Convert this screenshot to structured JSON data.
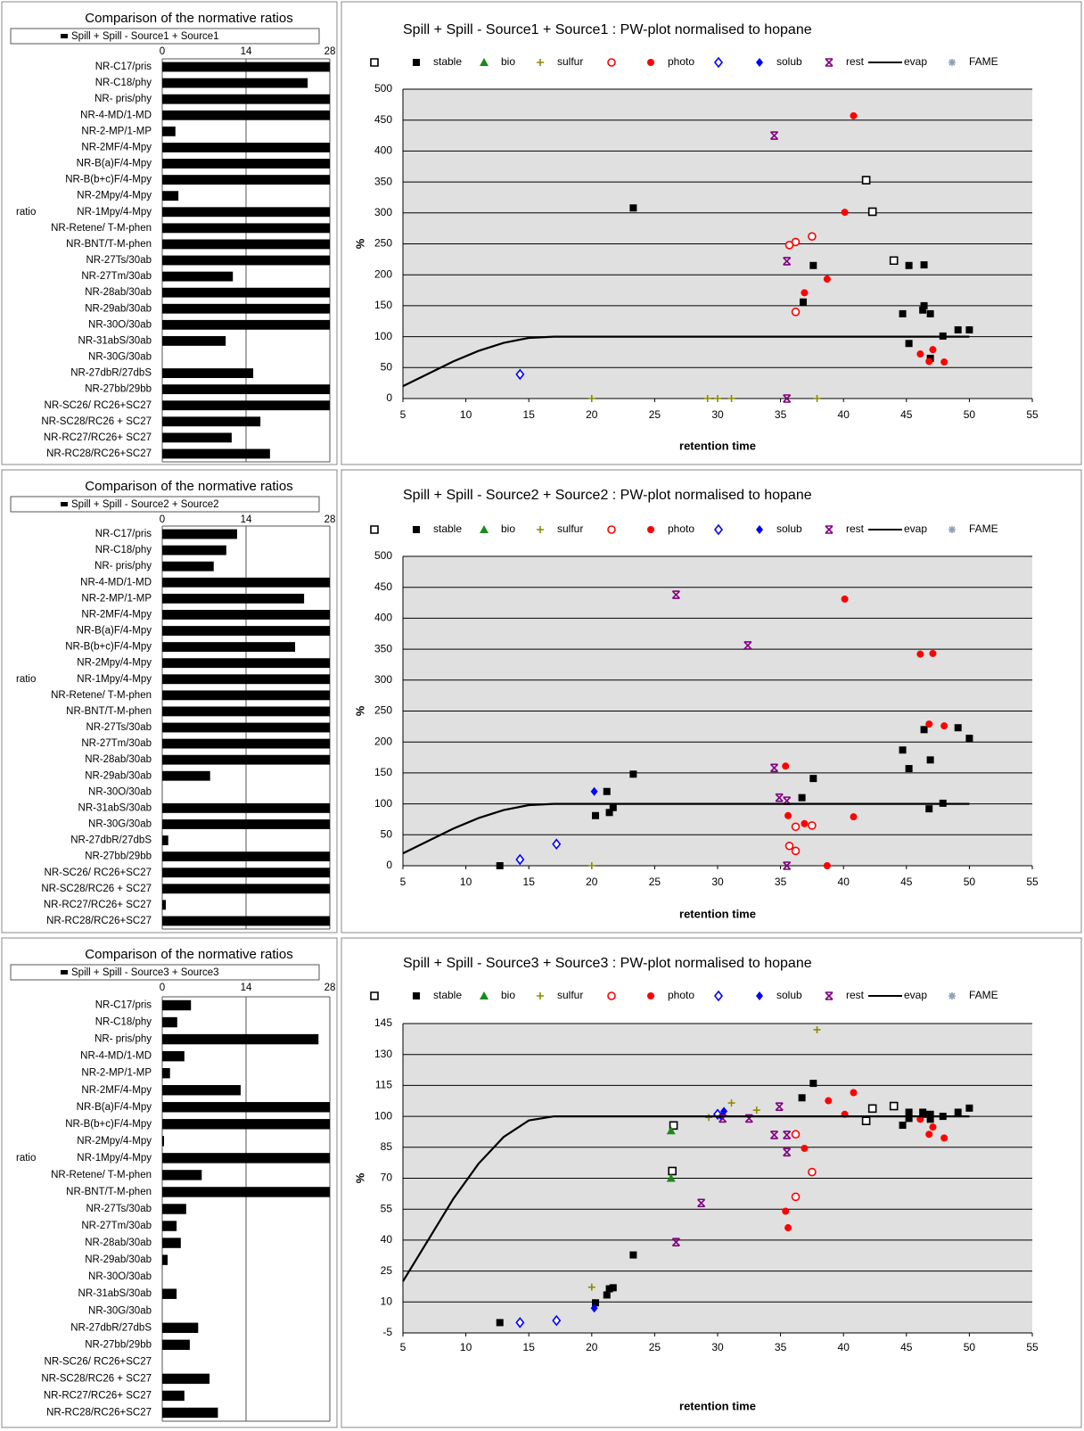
{
  "chart_data": [
    {
      "type": "hbar",
      "title": "Comparison of the normative ratios",
      "y_label": "ratio",
      "categories": [
        "NR-C17/pris",
        "NR-C18/phy",
        "NR- pris/phy",
        "NR-4-MD/1-MD",
        "NR-2-MP/1-MP",
        "NR-2MF/4-Mpy",
        "NR-B(a)F/4-Mpy",
        "NR-B(b+c)F/4-Mpy",
        "NR-2Mpy/4-Mpy",
        "NR-1Mpy/4-Mpy",
        "NR-Retene/ T-M-phen",
        "NR-BNT/T-M-phen",
        "NR-27Ts/30ab",
        "NR-27Tm/30ab",
        "NR-28ab/30ab",
        "NR-29ab/30ab",
        "NR-30O/30ab",
        "NR-31abS/30ab",
        "NR-30G/30ab",
        "NR-27dbR/27dbS",
        "NR-27bb/29bb",
        "NR-SC26/ RC26+SC27",
        "NR-SC28/RC26 + SC27",
        "NR-RC27/RC26+ SC27",
        "NR-RC28/RC26+SC27"
      ],
      "series": [
        {
          "name": "Spill + Spill  -  Source1 + Source1",
          "color": "#000000",
          "values": [
            28,
            24.3,
            28,
            28,
            2.2,
            28,
            28,
            28,
            2.7,
            28,
            28,
            28,
            28,
            11.8,
            28,
            28,
            28,
            10.6,
            0,
            15.2,
            28,
            28,
            16.4,
            11.6,
            18
          ]
        }
      ],
      "xlim": [
        0,
        28
      ],
      "xticks": [
        0,
        14,
        28
      ],
      "grid": true
    },
    {
      "type": "scatter",
      "title": "Spill + Spill  -  Source1 + Source1 :  PW-plot normalised to hopane",
      "x_label": "retention time",
      "y_label": "%",
      "xlim": [
        5,
        55
      ],
      "xticks": [
        5,
        10,
        15,
        20,
        25,
        30,
        35,
        40,
        45,
        50,
        55
      ],
      "ylim": [
        0,
        500
      ],
      "yticks": [
        0,
        50,
        100,
        150,
        200,
        250,
        300,
        350,
        400,
        450,
        500
      ],
      "grid": true,
      "background": "#e0e0e0",
      "series": [
        {
          "name": null,
          "color": "#000000",
          "marker": "square-open",
          "x": [
            41.8,
            42.3,
            44
          ],
          "values": [
            353,
            302,
            223
          ]
        },
        {
          "name": "stable",
          "color": "#000000",
          "marker": "square",
          "x": [
            23.3,
            37.6,
            36.8,
            44.7,
            45.2,
            46.4,
            46.4,
            46.3,
            46.9,
            47.9,
            45.2,
            46.9,
            49.1,
            50
          ],
          "values": [
            308,
            215,
            156,
            137,
            215,
            216,
            150,
            143,
            137,
            101,
            89,
            65,
            111,
            111
          ]
        },
        {
          "name": "bio",
          "color": "#1a8a1a",
          "marker": "triangle",
          "x": [],
          "values": []
        },
        {
          "name": "sulfur",
          "color": "#8b8b00",
          "marker": "plus",
          "x": [
            20,
            29.2,
            30,
            31.1,
            37.9
          ],
          "values": [
            0,
            0,
            0,
            0,
            0
          ]
        },
        {
          "name": null,
          "color": "#ff0000",
          "marker": "circle-open",
          "x": [
            35.7,
            36.2,
            37.5,
            36.2
          ],
          "values": [
            248,
            253,
            262,
            140
          ]
        },
        {
          "name": "photo",
          "color": "#ff0000",
          "marker": "circle",
          "x": [
            40.8,
            40.1,
            36.9,
            38.7,
            46.1,
            47.1,
            46.8,
            48
          ],
          "values": [
            457,
            301,
            171,
            193,
            72,
            79,
            60,
            59
          ]
        },
        {
          "name": null,
          "color": "#0000ff",
          "marker": "diamond-open",
          "x": [
            14.3
          ],
          "values": [
            39
          ]
        },
        {
          "name": "solub",
          "color": "#0000ff",
          "marker": "diamond",
          "x": [],
          "values": []
        },
        {
          "name": "rest",
          "color": "#800080",
          "marker": "x",
          "x": [
            34.5,
            35.5,
            35.5
          ],
          "values": [
            425,
            222,
            0
          ]
        },
        {
          "name": "evap",
          "color": "#000000",
          "marker": "line",
          "x": [
            5,
            7,
            9,
            11,
            13,
            15,
            17,
            50
          ],
          "values": [
            20,
            40,
            60,
            77,
            90,
            98,
            100,
            100
          ]
        },
        {
          "name": "FAME",
          "color": "#8fa0b8",
          "marker": "star",
          "x": [],
          "values": []
        }
      ]
    },
    {
      "type": "hbar",
      "title": "Comparison of the normative ratios",
      "y_label": "ratio",
      "categories": [
        "NR-C17/pris",
        "NR-C18/phy",
        "NR- pris/phy",
        "NR-4-MD/1-MD",
        "NR-2-MP/1-MP",
        "NR-2MF/4-Mpy",
        "NR-B(a)F/4-Mpy",
        "NR-B(b+c)F/4-Mpy",
        "NR-2Mpy/4-Mpy",
        "NR-1Mpy/4-Mpy",
        "NR-Retene/ T-M-phen",
        "NR-BNT/T-M-phen",
        "NR-27Ts/30ab",
        "NR-27Tm/30ab",
        "NR-28ab/30ab",
        "NR-29ab/30ab",
        "NR-30O/30ab",
        "NR-31abS/30ab",
        "NR-30G/30ab",
        "NR-27dbR/27dbS",
        "NR-27bb/29bb",
        "NR-SC26/ RC26+SC27",
        "NR-SC28/RC26 + SC27",
        "NR-RC27/RC26+ SC27",
        "NR-RC28/RC26+SC27"
      ],
      "series": [
        {
          "name": "Spill + Spill  -  Source2 + Source2",
          "color": "#000000",
          "values": [
            12.5,
            10.7,
            8.6,
            28,
            23.7,
            28,
            28,
            22.2,
            28,
            28,
            28,
            28,
            28,
            28,
            28,
            8,
            0,
            28,
            28,
            1,
            28,
            28,
            28,
            0.6,
            28
          ]
        }
      ],
      "xlim": [
        0,
        28
      ],
      "xticks": [
        0,
        14,
        28
      ],
      "grid": true
    },
    {
      "type": "scatter",
      "title": "Spill + Spill  -  Source2 + Source2 :  PW-plot normalised to hopane",
      "x_label": "retention time",
      "y_label": "%",
      "xlim": [
        5,
        55
      ],
      "xticks": [
        5,
        10,
        15,
        20,
        25,
        30,
        35,
        40,
        45,
        50,
        55
      ],
      "ylim": [
        0,
        500
      ],
      "yticks": [
        0,
        50,
        100,
        150,
        200,
        250,
        300,
        350,
        400,
        450,
        500
      ],
      "grid": true,
      "background": "#e0e0e0",
      "series": [
        {
          "name": null,
          "color": "#000000",
          "marker": "square-open",
          "x": [],
          "values": []
        },
        {
          "name": "stable",
          "color": "#000000",
          "marker": "square",
          "x": [
            12.7,
            20.3,
            21.2,
            21.4,
            21.7,
            23.3,
            36.7,
            37.6,
            44.7,
            45.2,
            46.4,
            46.9,
            49.1,
            50,
            46.8,
            47.9
          ],
          "values": [
            0,
            81,
            120,
            86,
            94,
            148,
            110,
            141,
            187,
            157,
            220,
            171,
            223,
            206,
            92,
            101
          ]
        },
        {
          "name": "bio",
          "color": "#1a8a1a",
          "marker": "triangle",
          "x": [],
          "values": []
        },
        {
          "name": "sulfur",
          "color": "#8b8b00",
          "marker": "plus",
          "x": [
            20
          ],
          "values": [
            0
          ]
        },
        {
          "name": null,
          "color": "#ff0000",
          "marker": "circle-open",
          "x": [
            36.2,
            37.5,
            35.7,
            36.2
          ],
          "values": [
            63,
            65,
            32,
            24
          ]
        },
        {
          "name": "photo",
          "color": "#ff0000",
          "marker": "circle",
          "x": [
            40.1,
            46.1,
            47.1,
            46.8,
            48,
            35.4,
            35.6,
            36.9,
            40.8,
            38.7
          ],
          "values": [
            431,
            342,
            343,
            229,
            226,
            161,
            81,
            68,
            79,
            0
          ]
        },
        {
          "name": null,
          "color": "#0000ff",
          "marker": "diamond-open",
          "x": [
            14.3,
            17.2
          ],
          "values": [
            10,
            35
          ]
        },
        {
          "name": "solub",
          "color": "#0000ff",
          "marker": "diamond",
          "x": [
            20.2
          ],
          "values": [
            120
          ]
        },
        {
          "name": "rest",
          "color": "#800080",
          "marker": "x",
          "x": [
            26.7,
            32.4,
            34.5,
            34.9,
            35.5,
            35.5
          ],
          "values": [
            438,
            356,
            158,
            110,
            105,
            0
          ]
        },
        {
          "name": "evap",
          "color": "#000000",
          "marker": "line",
          "x": [
            5,
            7,
            9,
            11,
            13,
            15,
            17,
            50
          ],
          "values": [
            20,
            40,
            60,
            77,
            90,
            98,
            100,
            100
          ]
        },
        {
          "name": "FAME",
          "color": "#8fa0b8",
          "marker": "star",
          "x": [],
          "values": []
        }
      ]
    },
    {
      "type": "hbar",
      "title": "Comparison of the normative ratios",
      "y_label": "ratio",
      "categories": [
        "NR-C17/pris",
        "NR-C18/phy",
        "NR- pris/phy",
        "NR-4-MD/1-MD",
        "NR-2-MP/1-MP",
        "NR-2MF/4-Mpy",
        "NR-B(a)F/4-Mpy",
        "NR-B(b+c)F/4-Mpy",
        "NR-2Mpy/4-Mpy",
        "NR-1Mpy/4-Mpy",
        "NR-Retene/ T-M-phen",
        "NR-BNT/T-M-phen",
        "NR-27Ts/30ab",
        "NR-27Tm/30ab",
        "NR-28ab/30ab",
        "NR-29ab/30ab",
        "NR-30O/30ab",
        "NR-31abS/30ab",
        "NR-30G/30ab",
        "NR-27dbR/27dbS",
        "NR-27bb/29bb",
        "NR-SC26/ RC26+SC27",
        "NR-SC28/RC26 + SC27",
        "NR-RC27/RC26+ SC27",
        "NR-RC28/RC26+SC27"
      ],
      "series": [
        {
          "name": "Spill + Spill  -  Source3 + Source3",
          "color": "#000000",
          "values": [
            4.8,
            2.5,
            26.1,
            3.7,
            1.3,
            13.1,
            28,
            28,
            0.3,
            28,
            6.6,
            28,
            4,
            2.4,
            3.1,
            0.9,
            0,
            2.4,
            0,
            6,
            4.6,
            0,
            7.9,
            3.7,
            9.3
          ]
        }
      ],
      "xlim": [
        0,
        28
      ],
      "xticks": [
        0,
        14,
        28
      ],
      "grid": true
    },
    {
      "type": "scatter",
      "title": "Spill + Spill  -  Source3 + Source3 :  PW-plot normalised to hopane",
      "x_label": "retention time",
      "y_label": "%",
      "xlim": [
        5,
        55
      ],
      "xticks": [
        5,
        10,
        15,
        20,
        25,
        30,
        35,
        40,
        45,
        50,
        55
      ],
      "ylim": [
        -5,
        145
      ],
      "yticks": [
        -5,
        10,
        25,
        40,
        55,
        70,
        85,
        100,
        115,
        130,
        145
      ],
      "grid": true,
      "background": "#e0e0e0",
      "series": [
        {
          "name": null,
          "color": "#000000",
          "marker": "square-open",
          "x": [
            26.5,
            26.4,
            41.8,
            42.3,
            44
          ],
          "values": [
            95.6,
            73.5,
            97.8,
            103.8,
            105
          ]
        },
        {
          "name": "stable",
          "color": "#000000",
          "marker": "square",
          "x": [
            12.7,
            20.3,
            21.2,
            21.4,
            21.7,
            23.3,
            36.7,
            37.6,
            44.7,
            45.2,
            45.2,
            46.4,
            46.3,
            46.9,
            46.9,
            47.9,
            49.1,
            50
          ],
          "values": [
            0,
            9.6,
            13.4,
            16.4,
            16.9,
            32.8,
            109,
            116,
            95.7,
            102,
            99,
            101,
            102,
            101,
            98.6,
            100,
            102,
            104
          ]
        },
        {
          "name": "bio",
          "color": "#1a8a1a",
          "marker": "triangle",
          "x": [
            26.3,
            26.3
          ],
          "values": [
            93,
            70
          ]
        },
        {
          "name": "sulfur",
          "color": "#8b8b00",
          "marker": "plus",
          "x": [
            20,
            29.3,
            31.1,
            33.1,
            37.9
          ],
          "values": [
            17.2,
            99.5,
            106.5,
            103,
            142
          ]
        },
        {
          "name": null,
          "color": "#ff0000",
          "marker": "circle-open",
          "x": [
            36.2,
            37.5,
            36.2
          ],
          "values": [
            91.3,
            73,
            61
          ]
        },
        {
          "name": "photo",
          "color": "#ff0000",
          "marker": "circle",
          "x": [
            38.8,
            40.8,
            40.1,
            36.9,
            35.4,
            35.6,
            46.1,
            47.1,
            46.8,
            48
          ],
          "values": [
            107.6,
            111.5,
            101,
            84.5,
            54,
            46,
            98.6,
            94.8,
            91.3,
            89.5
          ]
        },
        {
          "name": null,
          "color": "#0000ff",
          "marker": "diamond-open",
          "x": [
            14.3,
            17.2,
            30
          ],
          "values": [
            0,
            1,
            101
          ]
        },
        {
          "name": "solub",
          "color": "#0000ff",
          "marker": "diamond",
          "x": [
            20.2,
            30.5,
            30.3
          ],
          "values": [
            7,
            102.5,
            100
          ]
        },
        {
          "name": "rest",
          "color": "#800080",
          "marker": "x",
          "x": [
            26.7,
            28.7,
            30.4,
            32.5,
            34.5,
            34.9,
            35.5,
            35.5
          ],
          "values": [
            39,
            58,
            99,
            99,
            91,
            104.7,
            91,
            82.6
          ]
        },
        {
          "name": "evap",
          "color": "#000000",
          "marker": "line",
          "x": [
            5,
            7,
            9,
            11,
            13,
            15,
            17,
            50
          ],
          "values": [
            20,
            40,
            60,
            77,
            90,
            98,
            100,
            100
          ]
        },
        {
          "name": "FAME",
          "color": "#8fa0b8",
          "marker": "star",
          "x": [],
          "values": []
        }
      ]
    }
  ]
}
